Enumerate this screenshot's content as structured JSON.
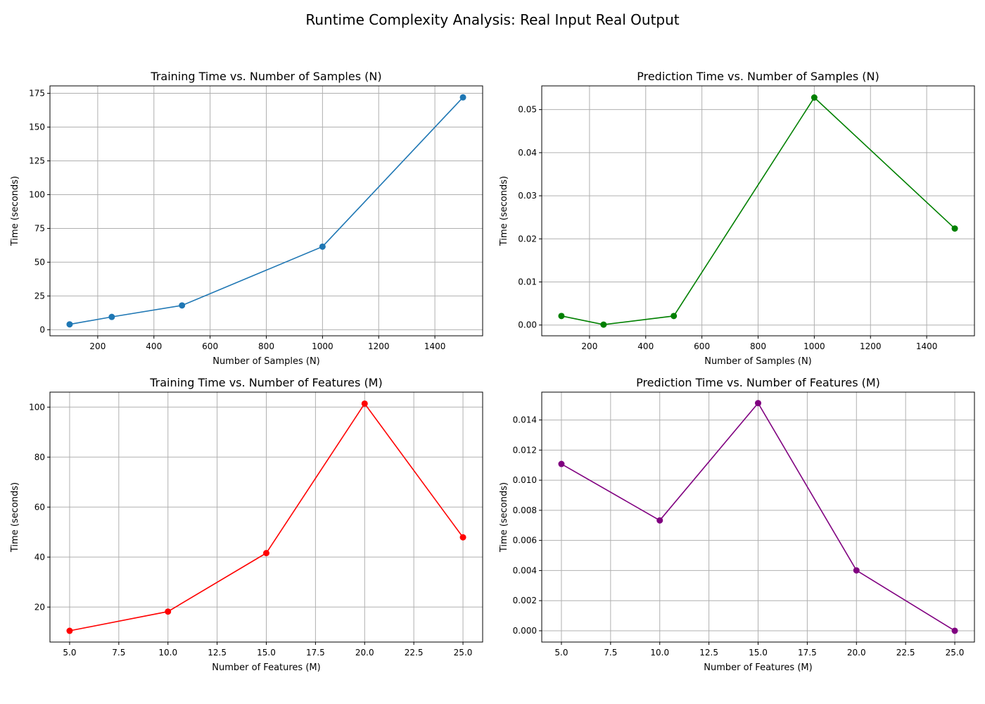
{
  "figure": {
    "title": "Runtime Complexity Analysis: Real Input Real Output"
  },
  "chart_data": [
    {
      "type": "line",
      "title": "Training Time vs. Number of Samples (N)",
      "xlabel": "Number of Samples (N)",
      "ylabel": "Time (seconds)",
      "color": "#1f77b4",
      "marker": "circle",
      "grid": true,
      "x": [
        100,
        250,
        500,
        1000,
        1500
      ],
      "y": [
        4.0,
        9.5,
        18.0,
        61.5,
        172.0
      ],
      "xlim": [
        30,
        1570
      ],
      "ylim": [
        -4.5,
        180.5
      ],
      "xticks": [
        200,
        400,
        600,
        800,
        1000,
        1200,
        1400
      ],
      "xtick_labels": [
        "200",
        "400",
        "600",
        "800",
        "1000",
        "1200",
        "1400"
      ],
      "yticks": [
        0,
        25,
        50,
        75,
        100,
        125,
        150,
        175
      ],
      "ytick_labels": [
        "0",
        "25",
        "50",
        "75",
        "100",
        "125",
        "150",
        "175"
      ]
    },
    {
      "type": "line",
      "title": "Prediction Time vs. Number of Samples (N)",
      "xlabel": "Number of Samples (N)",
      "ylabel": "Time (seconds)",
      "color": "#008000",
      "marker": "circle",
      "grid": true,
      "x": [
        100,
        250,
        500,
        1000,
        1500
      ],
      "y": [
        0.0021,
        0.0001,
        0.0021,
        0.0528,
        0.0224
      ],
      "xlim": [
        30,
        1570
      ],
      "ylim": [
        -0.0025,
        0.0555
      ],
      "xticks": [
        200,
        400,
        600,
        800,
        1000,
        1200,
        1400
      ],
      "xtick_labels": [
        "200",
        "400",
        "600",
        "800",
        "1000",
        "1200",
        "1400"
      ],
      "yticks": [
        0,
        0.01,
        0.02,
        0.03,
        0.04,
        0.05
      ],
      "ytick_labels": [
        "0.00",
        "0.01",
        "0.02",
        "0.03",
        "0.04",
        "0.05"
      ]
    },
    {
      "type": "line",
      "title": "Training Time vs. Number of Features (M)",
      "xlabel": "Number of Features (M)",
      "ylabel": "Time (seconds)",
      "color": "#ff0000",
      "marker": "circle",
      "grid": true,
      "x": [
        5,
        10,
        15,
        20,
        25
      ],
      "y": [
        10.5,
        18.2,
        41.6,
        101.4,
        47.9
      ],
      "xlim": [
        4,
        26
      ],
      "ylim": [
        6,
        106
      ],
      "xticks": [
        5,
        7.5,
        10,
        12.5,
        15,
        17.5,
        20,
        22.5,
        25
      ],
      "xtick_labels": [
        "5.0",
        "7.5",
        "10.0",
        "12.5",
        "15.0",
        "17.5",
        "20.0",
        "22.5",
        "25.0"
      ],
      "yticks": [
        20,
        40,
        60,
        80,
        100
      ],
      "ytick_labels": [
        "20",
        "40",
        "60",
        "80",
        "100"
      ]
    },
    {
      "type": "line",
      "title": "Prediction Time vs. Number of Features (M)",
      "xlabel": "Number of Features (M)",
      "ylabel": "Time (seconds)",
      "color": "#800080",
      "marker": "circle",
      "grid": true,
      "x": [
        5,
        10,
        15,
        20,
        25
      ],
      "y": [
        0.01108,
        0.00733,
        0.01512,
        0.00401,
        0.0
      ],
      "xlim": [
        4,
        26
      ],
      "ylim": [
        -0.00075,
        0.01585
      ],
      "xticks": [
        5,
        7.5,
        10,
        12.5,
        15,
        17.5,
        20,
        22.5,
        25
      ],
      "xtick_labels": [
        "5.0",
        "7.5",
        "10.0",
        "12.5",
        "15.0",
        "17.5",
        "20.0",
        "22.5",
        "25.0"
      ],
      "yticks": [
        0,
        0.002,
        0.004,
        0.006,
        0.008,
        0.01,
        0.012,
        0.014
      ],
      "ytick_labels": [
        "0.000",
        "0.002",
        "0.004",
        "0.006",
        "0.008",
        "0.010",
        "0.012",
        "0.014"
      ]
    }
  ]
}
